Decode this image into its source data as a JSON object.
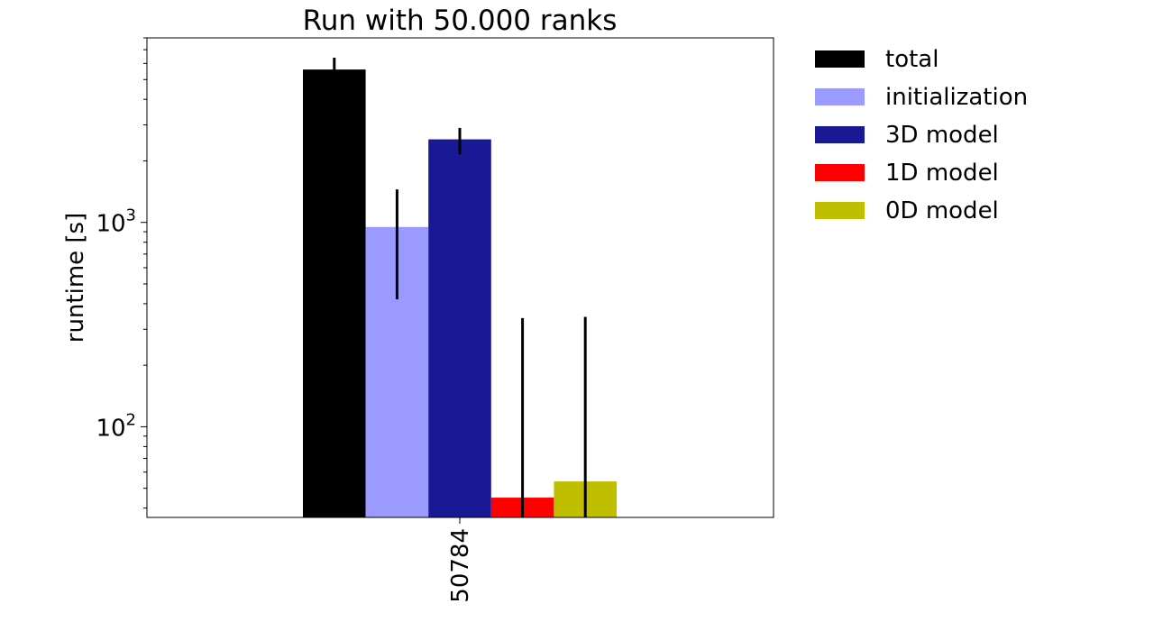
{
  "chart_data": {
    "type": "bar",
    "title": "Run with 50.000 ranks",
    "xlabel": "",
    "ylabel": "runtime [s]",
    "yscale": "log",
    "ylim": [
      36,
      8000
    ],
    "y_ticks": [
      {
        "value": 100,
        "base": "10",
        "exp": "2"
      },
      {
        "value": 1000,
        "base": "10",
        "exp": "3"
      }
    ],
    "categories": [
      "50784"
    ],
    "grid": false,
    "legend_position": "outside-top-right",
    "series": [
      {
        "name": "total",
        "color": "#000000",
        "values": [
          5600
        ],
        "err_low": [
          5000
        ],
        "err_high": [
          6400
        ]
      },
      {
        "name": "initialization",
        "color": "#9b9bff",
        "values": [
          950
        ],
        "err_low": [
          420
        ],
        "err_high": [
          1450
        ]
      },
      {
        "name": "3D model",
        "color": "#191996",
        "values": [
          2550
        ],
        "err_low": [
          2150
        ],
        "err_high": [
          2900
        ]
      },
      {
        "name": "1D model",
        "color": "#ff0000",
        "values": [
          45
        ],
        "err_low": [
          36
        ],
        "err_high": [
          340
        ]
      },
      {
        "name": "0D model",
        "color": "#bfbf00",
        "values": [
          54
        ],
        "err_low": [
          36
        ],
        "err_high": [
          345
        ]
      }
    ]
  }
}
